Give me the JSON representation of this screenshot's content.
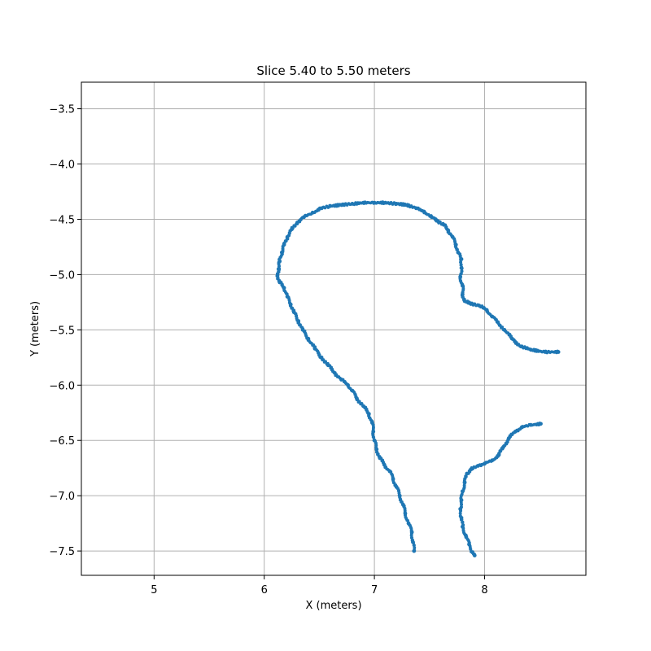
{
  "chart_data": {
    "type": "scatter",
    "title": "Slice 5.40 to 5.50 meters",
    "xlabel": "X (meters)",
    "ylabel": "Y (meters)",
    "xlim": [
      4.34,
      8.92
    ],
    "ylim": [
      -7.72,
      -3.26
    ],
    "xticks": [
      5,
      6,
      7,
      8
    ],
    "xtick_labels": [
      "5",
      "6",
      "7",
      "8"
    ],
    "yticks": [
      -3.5,
      -4.0,
      -4.5,
      -5.0,
      -5.5,
      -6.0,
      -6.5,
      -7.0,
      -7.5
    ],
    "ytick_labels": [
      "−3.5",
      "−4.0",
      "−4.5",
      "−5.0",
      "−5.5",
      "−6.0",
      "−6.5",
      "−7.0",
      "−7.5"
    ],
    "grid": true,
    "marker_color": "#1f77b4",
    "series": [
      {
        "values": [
          [
            8.67,
            -5.7
          ],
          [
            8.55,
            -5.7
          ],
          [
            8.42,
            -5.68
          ],
          [
            8.33,
            -5.65
          ],
          [
            8.25,
            -5.58
          ],
          [
            8.18,
            -5.5
          ],
          [
            8.12,
            -5.43
          ],
          [
            8.07,
            -5.38
          ],
          [
            8.02,
            -5.32
          ],
          [
            7.95,
            -5.28
          ],
          [
            7.87,
            -5.26
          ],
          [
            7.82,
            -5.24
          ],
          [
            7.8,
            -5.18
          ],
          [
            7.8,
            -5.1
          ],
          [
            7.78,
            -5.02
          ],
          [
            7.79,
            -4.94
          ],
          [
            7.79,
            -4.86
          ],
          [
            7.76,
            -4.8
          ],
          [
            7.74,
            -4.73
          ],
          [
            7.71,
            -4.66
          ],
          [
            7.67,
            -4.6
          ],
          [
            7.63,
            -4.55
          ],
          [
            7.58,
            -4.52
          ],
          [
            7.52,
            -4.48
          ],
          [
            7.45,
            -4.43
          ],
          [
            7.38,
            -4.4
          ],
          [
            7.3,
            -4.37
          ],
          [
            7.2,
            -4.36
          ],
          [
            7.1,
            -4.35
          ],
          [
            7.0,
            -4.35
          ],
          [
            6.9,
            -4.35
          ],
          [
            6.8,
            -4.36
          ],
          [
            6.7,
            -4.37
          ],
          [
            6.6,
            -4.38
          ],
          [
            6.52,
            -4.4
          ],
          [
            6.44,
            -4.44
          ],
          [
            6.36,
            -4.48
          ],
          [
            6.3,
            -4.53
          ],
          [
            6.25,
            -4.59
          ],
          [
            6.21,
            -4.66
          ],
          [
            6.18,
            -4.73
          ],
          [
            6.16,
            -4.8
          ],
          [
            6.14,
            -4.88
          ],
          [
            6.13,
            -4.95
          ],
          [
            6.12,
            -5.01
          ],
          [
            6.14,
            -5.07
          ],
          [
            6.18,
            -5.12
          ],
          [
            6.21,
            -5.2
          ],
          [
            6.24,
            -5.27
          ],
          [
            6.27,
            -5.34
          ],
          [
            6.31,
            -5.42
          ],
          [
            6.35,
            -5.5
          ],
          [
            6.4,
            -5.58
          ],
          [
            6.46,
            -5.67
          ],
          [
            6.52,
            -5.75
          ],
          [
            6.58,
            -5.82
          ],
          [
            6.64,
            -5.89
          ],
          [
            6.7,
            -5.95
          ],
          [
            6.76,
            -6.0
          ],
          [
            6.8,
            -6.05
          ],
          [
            6.84,
            -6.12
          ],
          [
            6.9,
            -6.19
          ],
          [
            6.95,
            -6.26
          ],
          [
            6.98,
            -6.34
          ],
          [
            6.99,
            -6.42
          ],
          [
            7.0,
            -6.5
          ],
          [
            7.02,
            -6.58
          ],
          [
            7.05,
            -6.66
          ],
          [
            7.09,
            -6.72
          ],
          [
            7.14,
            -6.78
          ],
          [
            7.17,
            -6.85
          ],
          [
            7.2,
            -6.92
          ],
          [
            7.23,
            -7.0
          ],
          [
            7.26,
            -7.08
          ],
          [
            7.28,
            -7.16
          ],
          [
            7.31,
            -7.25
          ],
          [
            7.34,
            -7.33
          ],
          [
            7.35,
            -7.42
          ],
          [
            7.36,
            -7.5
          ],
          [
            8.51,
            -6.35
          ],
          [
            8.42,
            -6.36
          ],
          [
            8.34,
            -6.38
          ],
          [
            8.28,
            -6.42
          ],
          [
            8.22,
            -6.48
          ],
          [
            8.17,
            -6.56
          ],
          [
            8.13,
            -6.63
          ],
          [
            8.07,
            -6.68
          ],
          [
            8.0,
            -6.71
          ],
          [
            7.94,
            -6.73
          ],
          [
            7.88,
            -6.76
          ],
          [
            7.84,
            -6.8
          ],
          [
            7.82,
            -6.88
          ],
          [
            7.8,
            -6.96
          ],
          [
            7.79,
            -7.04
          ],
          [
            7.78,
            -7.12
          ],
          [
            7.79,
            -7.2
          ],
          [
            7.8,
            -7.28
          ],
          [
            7.83,
            -7.36
          ],
          [
            7.86,
            -7.44
          ],
          [
            7.89,
            -7.51
          ],
          [
            7.91,
            -7.54
          ]
        ]
      }
    ]
  }
}
